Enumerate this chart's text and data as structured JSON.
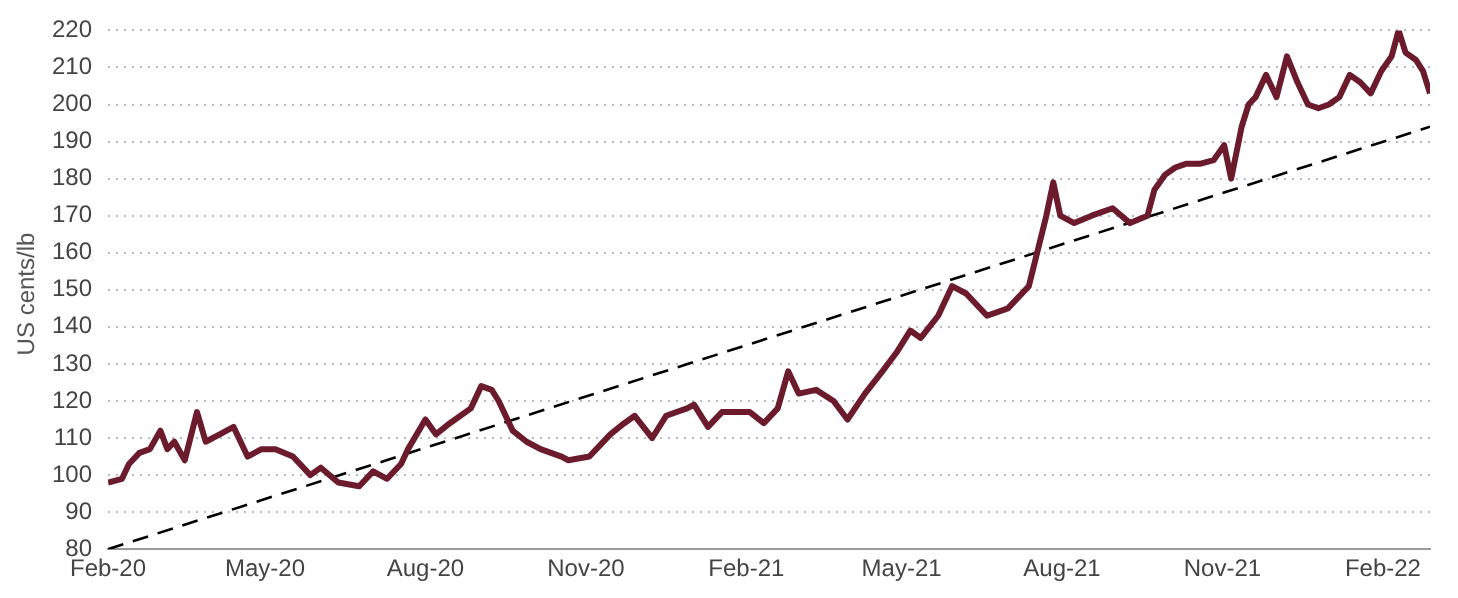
{
  "chart_data": {
    "type": "line",
    "ylabel": "US cents/lb",
    "xlim": [
      "2020-02-01",
      "2022-02-28"
    ],
    "xticks": [
      {
        "value": "2020-02-01",
        "label": "Feb-20"
      },
      {
        "value": "2020-05-01",
        "label": "May-20"
      },
      {
        "value": "2020-08-01",
        "label": "Aug-20"
      },
      {
        "value": "2020-11-01",
        "label": "Nov-20"
      },
      {
        "value": "2021-02-01",
        "label": "Feb-21"
      },
      {
        "value": "2021-05-01",
        "label": "May-21"
      },
      {
        "value": "2021-08-01",
        "label": "Aug-21"
      },
      {
        "value": "2021-11-01",
        "label": "Nov-21"
      },
      {
        "value": "2022-02-01",
        "label": "Feb-22"
      }
    ],
    "ylim": [
      80,
      220
    ],
    "yticks": [
      80,
      90,
      100,
      110,
      120,
      130,
      140,
      150,
      160,
      170,
      180,
      190,
      200,
      210,
      220
    ],
    "grid": "y",
    "legend": false,
    "marker": "none",
    "series": [
      {
        "color": "#6b1b2b",
        "line_style": "solid",
        "x": [
          "2020-02-01",
          "2020-02-09",
          "2020-02-13",
          "2020-02-19",
          "2020-02-25",
          "2020-03-02",
          "2020-03-06",
          "2020-03-10",
          "2020-03-16",
          "2020-03-23",
          "2020-03-28",
          "2020-04-05",
          "2020-04-13",
          "2020-04-21",
          "2020-04-29",
          "2020-05-07",
          "2020-05-17",
          "2020-05-27",
          "2020-06-02",
          "2020-06-12",
          "2020-06-24",
          "2020-07-02",
          "2020-07-10",
          "2020-07-18",
          "2020-07-22",
          "2020-08-01",
          "2020-08-07",
          "2020-08-15",
          "2020-08-27",
          "2020-09-02",
          "2020-09-08",
          "2020-09-12",
          "2020-09-20",
          "2020-09-28",
          "2020-10-06",
          "2020-10-18",
          "2020-10-22",
          "2020-11-03",
          "2020-11-15",
          "2020-11-23",
          "2020-11-29",
          "2020-12-09",
          "2020-12-17",
          "2020-12-29",
          "2021-01-02",
          "2021-01-10",
          "2021-01-18",
          "2021-02-03",
          "2021-02-11",
          "2021-02-19",
          "2021-02-25",
          "2021-03-03",
          "2021-03-13",
          "2021-03-23",
          "2021-03-31",
          "2021-04-10",
          "2021-04-20",
          "2021-04-28",
          "2021-05-06",
          "2021-05-12",
          "2021-05-22",
          "2021-05-30",
          "2021-06-07",
          "2021-06-19",
          "2021-07-01",
          "2021-07-13",
          "2021-07-23",
          "2021-07-27",
          "2021-07-31",
          "2021-08-08",
          "2021-08-18",
          "2021-08-30",
          "2021-09-09",
          "2021-09-19",
          "2021-09-23",
          "2021-09-29",
          "2021-10-05",
          "2021-10-11",
          "2021-10-19",
          "2021-10-27",
          "2021-11-02",
          "2021-11-06",
          "2021-11-12",
          "2021-11-16",
          "2021-11-20",
          "2021-11-26",
          "2021-12-02",
          "2021-12-08",
          "2021-12-14",
          "2021-12-20",
          "2021-12-26",
          "2022-01-01",
          "2022-01-07",
          "2022-01-13",
          "2022-01-19",
          "2022-01-25",
          "2022-01-31",
          "2022-02-06",
          "2022-02-10",
          "2022-02-14",
          "2022-02-20",
          "2022-02-24",
          "2022-02-28"
        ],
        "values": [
          98,
          99,
          103,
          106,
          107,
          112,
          107,
          109,
          104,
          117,
          109,
          111,
          113,
          105,
          107,
          107,
          105,
          100,
          102,
          98,
          97,
          101,
          99,
          103,
          107,
          115,
          111,
          114,
          118,
          124,
          123,
          120,
          112,
          109,
          107,
          105,
          104,
          105,
          111,
          114,
          116,
          110,
          116,
          118,
          119,
          113,
          117,
          117,
          114,
          118,
          128,
          122,
          123,
          120,
          115,
          122,
          128,
          133,
          139,
          137,
          143,
          151,
          149,
          143,
          145,
          151,
          170,
          179,
          170,
          168,
          170,
          172,
          168,
          170,
          177,
          181,
          183,
          184,
          184,
          185,
          189,
          180,
          194,
          200,
          202,
          208,
          202,
          213,
          206,
          200,
          199,
          200,
          202,
          208,
          206,
          203,
          209,
          213,
          220,
          214,
          212,
          209,
          203
        ]
      },
      {
        "color": "#000000",
        "line_style": "dashed",
        "x": [
          "2020-02-01",
          "2022-02-28"
        ],
        "values": [
          80,
          194
        ]
      }
    ]
  }
}
